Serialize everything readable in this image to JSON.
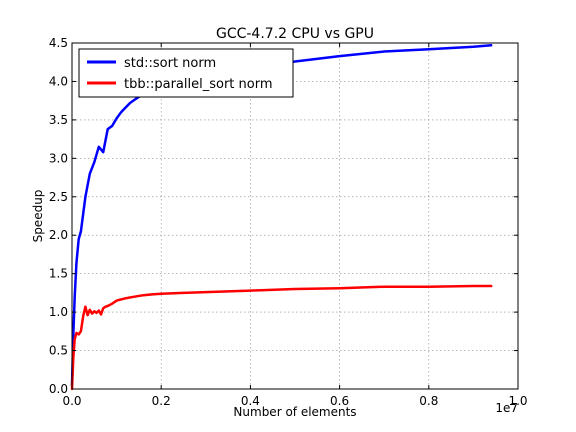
{
  "chart_data": {
    "type": "line",
    "title": "GCC-4.7.2 CPU vs GPU",
    "xlabel": "Number of elements",
    "ylabel": "Speedup",
    "x_offset_label": "1e7",
    "xlim": [
      0,
      1.0
    ],
    "ylim": [
      0,
      4.5
    ],
    "x_ticks": [
      0.0,
      0.2,
      0.4,
      0.6,
      0.8,
      1.0
    ],
    "x_tick_labels": [
      "0.0",
      "0.2",
      "0.4",
      "0.6",
      "0.8",
      "1.0"
    ],
    "y_ticks": [
      0.0,
      0.5,
      1.0,
      1.5,
      2.0,
      2.5,
      3.0,
      3.5,
      4.0,
      4.5
    ],
    "y_tick_labels": [
      "0.0",
      "0.5",
      "1.0",
      "1.5",
      "2.0",
      "2.5",
      "3.0",
      "3.5",
      "4.0",
      "4.5"
    ],
    "grid": true,
    "legend_position": "top-left",
    "series": [
      {
        "name": "std::sort norm",
        "color": "#0000ff",
        "x": [
          0,
          0.003,
          0.006,
          0.01,
          0.015,
          0.02,
          0.03,
          0.04,
          0.05,
          0.06,
          0.07,
          0.08,
          0.09,
          0.1,
          0.11,
          0.12,
          0.13,
          0.14,
          0.15,
          0.16,
          0.18,
          0.2,
          0.25,
          0.3,
          0.4,
          0.5,
          0.6,
          0.7,
          0.8,
          0.9,
          0.94
        ],
        "y": [
          0.05,
          0.7,
          1.2,
          1.65,
          1.95,
          2.05,
          2.5,
          2.8,
          2.95,
          3.15,
          3.08,
          3.38,
          3.42,
          3.52,
          3.6,
          3.66,
          3.72,
          3.76,
          3.8,
          3.83,
          3.88,
          3.92,
          4.0,
          4.07,
          4.17,
          4.26,
          4.33,
          4.39,
          4.42,
          4.45,
          4.47
        ]
      },
      {
        "name": "tbb::parallel_sort norm",
        "color": "#ff0000",
        "x": [
          0,
          0.003,
          0.006,
          0.01,
          0.015,
          0.02,
          0.025,
          0.03,
          0.035,
          0.04,
          0.045,
          0.05,
          0.055,
          0.06,
          0.065,
          0.07,
          0.075,
          0.08,
          0.09,
          0.1,
          0.12,
          0.14,
          0.16,
          0.18,
          0.2,
          0.25,
          0.3,
          0.4,
          0.5,
          0.6,
          0.7,
          0.8,
          0.9,
          0.94
        ],
        "y": [
          0.0,
          0.4,
          0.65,
          0.73,
          0.71,
          0.75,
          0.95,
          1.07,
          0.96,
          1.03,
          0.98,
          1.01,
          0.99,
          1.02,
          0.97,
          1.05,
          1.07,
          1.08,
          1.11,
          1.15,
          1.18,
          1.2,
          1.22,
          1.23,
          1.24,
          1.25,
          1.26,
          1.28,
          1.3,
          1.31,
          1.33,
          1.33,
          1.34,
          1.34
        ]
      }
    ]
  }
}
